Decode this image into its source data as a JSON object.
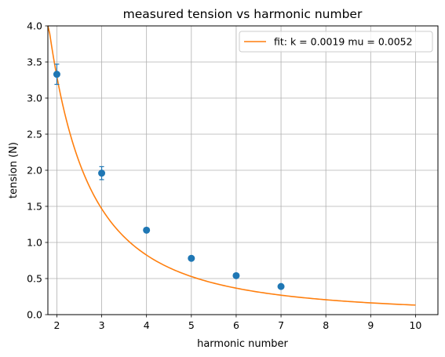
{
  "chart_data": {
    "type": "scatter",
    "title": "measured tension vs harmonic number",
    "xlabel": "harmonic number",
    "ylabel": "tension (N)",
    "xlim": [
      1.8,
      10.5
    ],
    "ylim": [
      0.0,
      4.0
    ],
    "xticks": [
      "2",
      "3",
      "4",
      "5",
      "6",
      "7",
      "8",
      "9",
      "10"
    ],
    "yticks": [
      "0.0",
      "0.5",
      "1.0",
      "1.5",
      "2.0",
      "2.5",
      "3.0",
      "3.5",
      "4.0"
    ],
    "grid": true,
    "legend_position": "top-right",
    "series": [
      {
        "kind": "errorbar-points",
        "color": "#1f77b4",
        "x": [
          2,
          3,
          4,
          5,
          6,
          7
        ],
        "y": [
          3.33,
          1.96,
          1.17,
          0.78,
          0.54,
          0.39
        ],
        "yerr": [
          0.14,
          0.09,
          0.03,
          0.02,
          0.02,
          0.02
        ]
      },
      {
        "kind": "fit-curve",
        "name": "fit: k = 0.0019 mu = 0.0052",
        "color": "#ff7f0e",
        "function": "a / x^2",
        "a": 13.2,
        "x_range": [
          1.8,
          10
        ]
      }
    ]
  }
}
